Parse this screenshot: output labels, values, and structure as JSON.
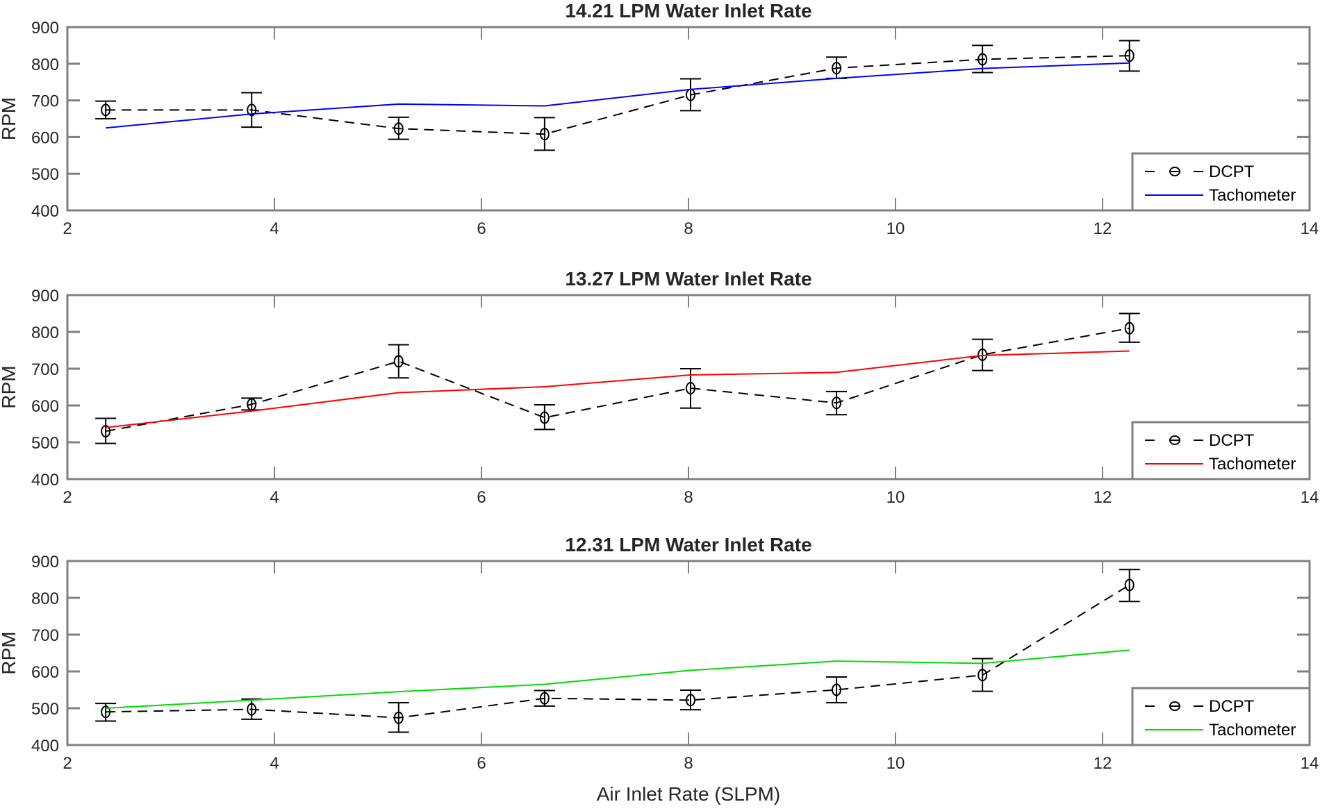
{
  "chart_data": [
    {
      "type": "line",
      "title": "14.21 LPM Water Inlet Rate",
      "xlabel": "",
      "ylabel": "RPM",
      "xlim": [
        2,
        14
      ],
      "ylim": [
        400,
        900
      ],
      "xticks": [
        2,
        4,
        6,
        8,
        10,
        12,
        14
      ],
      "yticks": [
        400,
        500,
        600,
        700,
        800,
        900
      ],
      "grid": false,
      "legend": "bottom-right",
      "series": [
        {
          "name": "DCPT",
          "style": "dashed-circle-errorbar",
          "color": "#000000",
          "x": [
            2.37,
            3.78,
            5.2,
            6.61,
            8.02,
            9.43,
            10.84,
            12.26
          ],
          "y": [
            674,
            674,
            623,
            608,
            715,
            788,
            812,
            822
          ],
          "err_low": [
            650,
            627,
            594,
            564,
            672,
            760,
            776,
            780
          ],
          "err_high": [
            698,
            721,
            654,
            653,
            759,
            818,
            850,
            863
          ]
        },
        {
          "name": "Tachometer",
          "style": "solid",
          "color": "#0000ff",
          "x": [
            2.37,
            3.78,
            5.2,
            6.61,
            8.02,
            9.43,
            10.84,
            12.26
          ],
          "y": [
            625,
            663,
            690,
            685,
            730,
            760,
            787,
            802
          ]
        }
      ]
    },
    {
      "type": "line",
      "title": "13.27 LPM Water Inlet Rate",
      "xlabel": "",
      "ylabel": "RPM",
      "xlim": [
        2,
        14
      ],
      "ylim": [
        400,
        900
      ],
      "xticks": [
        2,
        4,
        6,
        8,
        10,
        12,
        14
      ],
      "yticks": [
        400,
        500,
        600,
        700,
        800,
        900
      ],
      "grid": false,
      "legend": "bottom-right",
      "series": [
        {
          "name": "DCPT",
          "style": "dashed-circle-errorbar",
          "color": "#000000",
          "x": [
            2.37,
            3.78,
            5.2,
            6.61,
            8.02,
            9.43,
            10.84,
            12.26
          ],
          "y": [
            530,
            603,
            720,
            567,
            647,
            607,
            738,
            810
          ],
          "err_low": [
            497,
            588,
            675,
            535,
            593,
            575,
            695,
            772
          ],
          "err_high": [
            565,
            620,
            765,
            602,
            700,
            638,
            780,
            850
          ]
        },
        {
          "name": "Tachometer",
          "style": "solid",
          "color": "#ff0000",
          "x": [
            2.37,
            3.78,
            5.2,
            6.61,
            8.02,
            9.43,
            10.84,
            12.26
          ],
          "y": [
            540,
            585,
            635,
            651,
            683,
            690,
            736,
            748
          ]
        }
      ]
    },
    {
      "type": "line",
      "title": "12.31 LPM Water Inlet Rate",
      "xlabel": "Air Inlet Rate (SLPM)",
      "ylabel": "RPM",
      "xlim": [
        2,
        14
      ],
      "ylim": [
        400,
        900
      ],
      "xticks": [
        2,
        4,
        6,
        8,
        10,
        12,
        14
      ],
      "yticks": [
        400,
        500,
        600,
        700,
        800,
        900
      ],
      "grid": false,
      "legend": "bottom-right",
      "series": [
        {
          "name": "DCPT",
          "style": "dashed-circle-errorbar",
          "color": "#000000",
          "x": [
            2.37,
            3.78,
            5.2,
            6.61,
            8.02,
            9.43,
            10.84,
            12.26
          ],
          "y": [
            490,
            497,
            474,
            527,
            522,
            550,
            590,
            835
          ],
          "err_low": [
            465,
            470,
            435,
            506,
            496,
            515,
            546,
            790
          ],
          "err_high": [
            513,
            525,
            515,
            548,
            549,
            585,
            635,
            877
          ]
        },
        {
          "name": "Tachometer",
          "style": "solid",
          "color": "#00dd00",
          "x": [
            2.37,
            3.78,
            5.2,
            6.61,
            8.02,
            9.43,
            10.84,
            12.26
          ],
          "y": [
            500,
            522,
            545,
            565,
            603,
            628,
            622,
            658
          ]
        }
      ]
    }
  ]
}
